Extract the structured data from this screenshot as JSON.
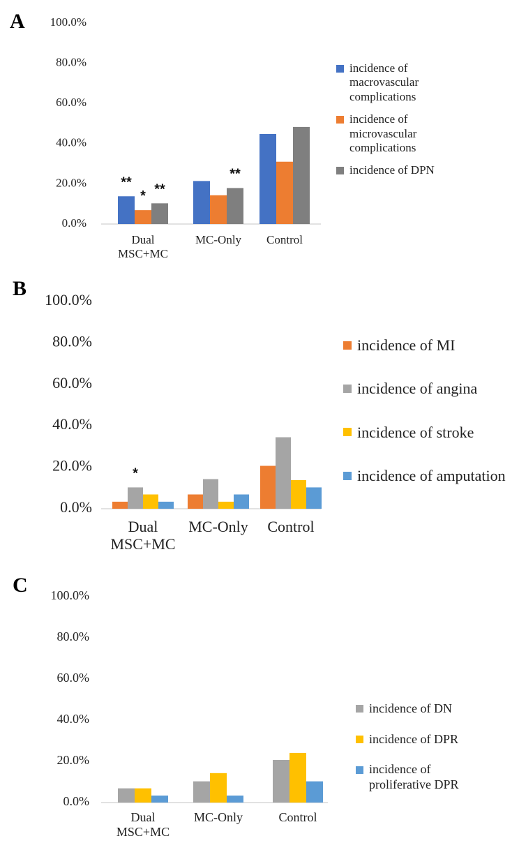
{
  "chart_data": [
    {
      "type": "bar",
      "panel_label": "A",
      "categories": [
        "Dual MSC+MC",
        "MC-Only",
        "Control"
      ],
      "series": [
        {
          "name": "incidence of macrovascular complications",
          "color": "#4472c4",
          "values": [
            13.8,
            21.4,
            44.8
          ],
          "annotations": [
            "**",
            null,
            null
          ]
        },
        {
          "name": "incidence of microvascular complications",
          "color": "#ed7d31",
          "values": [
            6.9,
            14.3,
            31.0
          ],
          "annotations": [
            "*",
            null,
            null
          ]
        },
        {
          "name": "incidence of DPN",
          "color": "#7f7f7f",
          "values": [
            10.3,
            17.9,
            48.3
          ],
          "annotations": [
            "**",
            "**",
            null
          ]
        }
      ],
      "ylim": [
        0,
        100
      ],
      "yticks": [
        {
          "value": 0,
          "label": "0.0%"
        },
        {
          "value": 20,
          "label": "20.0%"
        },
        {
          "value": 40,
          "label": "40.0%"
        },
        {
          "value": 60,
          "label": "60.0%"
        },
        {
          "value": 80,
          "label": "80.0%"
        },
        {
          "value": 100,
          "label": "100.0%"
        }
      ],
      "legend": "right"
    },
    {
      "type": "bar",
      "panel_label": "B",
      "categories": [
        "Dual MSC+MC",
        "MC-Only",
        "Control"
      ],
      "series": [
        {
          "name": "incidence of MI",
          "color": "#ed7d31",
          "values": [
            3.4,
            6.9,
            20.7
          ],
          "annotations": [
            null,
            null,
            null
          ]
        },
        {
          "name": "incidence of angina",
          "color": "#a5a5a5",
          "values": [
            10.3,
            14.3,
            34.5
          ],
          "annotations": [
            "*",
            null,
            null
          ]
        },
        {
          "name": "incidence of stroke",
          "color": "#ffc000",
          "values": [
            6.9,
            3.4,
            13.8
          ],
          "annotations": [
            null,
            null,
            null
          ]
        },
        {
          "name": "incidence of amputation",
          "color": "#5b9bd5",
          "values": [
            3.4,
            6.9,
            10.3
          ],
          "annotations": [
            null,
            null,
            null
          ]
        }
      ],
      "ylim": [
        0,
        100
      ],
      "yticks": [
        {
          "value": 0,
          "label": "0.0%"
        },
        {
          "value": 20,
          "label": "20.0%"
        },
        {
          "value": 40,
          "label": "40.0%"
        },
        {
          "value": 60,
          "label": "60.0%"
        },
        {
          "value": 80,
          "label": "80.0%"
        },
        {
          "value": 100,
          "label": "100.0%"
        }
      ],
      "legend": "right"
    },
    {
      "type": "bar",
      "panel_label": "C",
      "categories": [
        "Dual MSC+MC",
        "MC-Only",
        "Control"
      ],
      "series": [
        {
          "name": "incidence of DN",
          "color": "#a5a5a5",
          "values": [
            6.9,
            10.3,
            20.7
          ]
        },
        {
          "name": "incidence of DPR",
          "color": "#ffc000",
          "values": [
            6.9,
            14.3,
            24.1
          ]
        },
        {
          "name": "incidence of proliferative DPR",
          "color": "#5b9bd5",
          "values": [
            3.4,
            3.4,
            10.3
          ]
        }
      ],
      "ylim": [
        0,
        100
      ],
      "yticks": [
        {
          "value": 0,
          "label": "0.0%"
        },
        {
          "value": 20,
          "label": "20.0%"
        },
        {
          "value": 40,
          "label": "40.0%"
        },
        {
          "value": 60,
          "label": "60.0%"
        },
        {
          "value": 80,
          "label": "80.0%"
        },
        {
          "value": 100,
          "label": "100.0%"
        }
      ],
      "legend": "right"
    }
  ]
}
